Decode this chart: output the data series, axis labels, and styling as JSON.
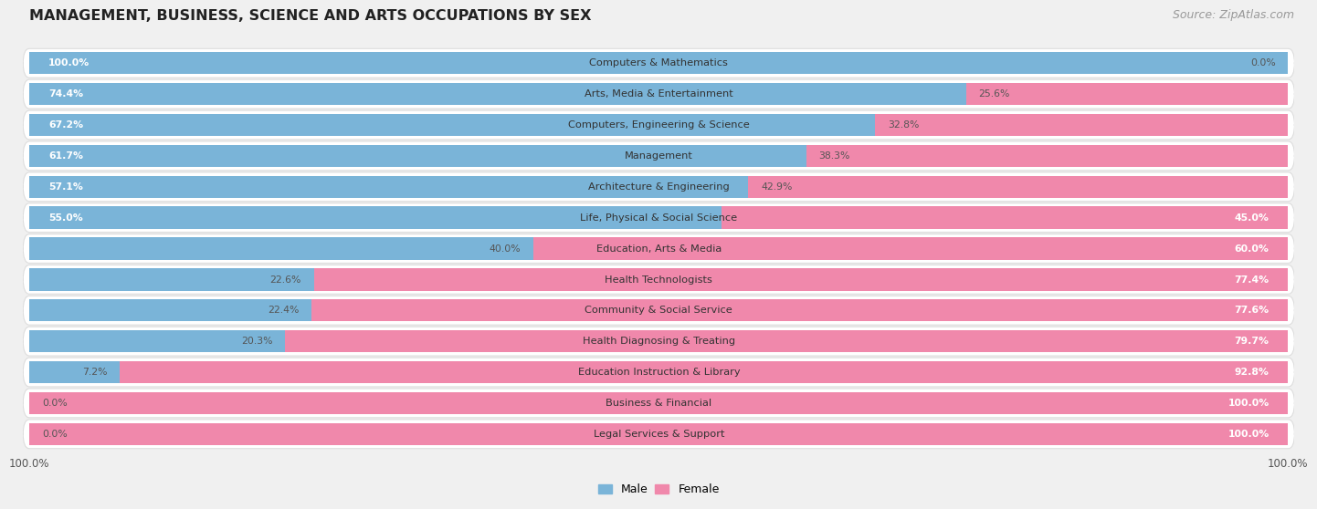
{
  "title": "MANAGEMENT, BUSINESS, SCIENCE AND ARTS OCCUPATIONS BY SEX",
  "source": "Source: ZipAtlas.com",
  "categories": [
    "Computers & Mathematics",
    "Arts, Media & Entertainment",
    "Computers, Engineering & Science",
    "Management",
    "Architecture & Engineering",
    "Life, Physical & Social Science",
    "Education, Arts & Media",
    "Health Technologists",
    "Community & Social Service",
    "Health Diagnosing & Treating",
    "Education Instruction & Library",
    "Business & Financial",
    "Legal Services & Support"
  ],
  "male": [
    100.0,
    74.4,
    67.2,
    61.7,
    57.1,
    55.0,
    40.0,
    22.6,
    22.4,
    20.3,
    7.2,
    0.0,
    0.0
  ],
  "female": [
    0.0,
    25.6,
    32.8,
    38.3,
    42.9,
    45.0,
    60.0,
    77.4,
    77.6,
    79.7,
    92.8,
    100.0,
    100.0
  ],
  "male_color": "#7ab4d8",
  "female_color": "#f088ab",
  "bg_color": "#f0f0f0",
  "row_bg_color": "#ffffff",
  "row_border_color": "#dddddd",
  "title_fontsize": 11.5,
  "source_fontsize": 9,
  "bar_height": 0.72,
  "xlim_left": 0.0,
  "xlim_right": 100.0,
  "xtick_left_label": "100.0%",
  "xtick_right_label": "100.0%"
}
